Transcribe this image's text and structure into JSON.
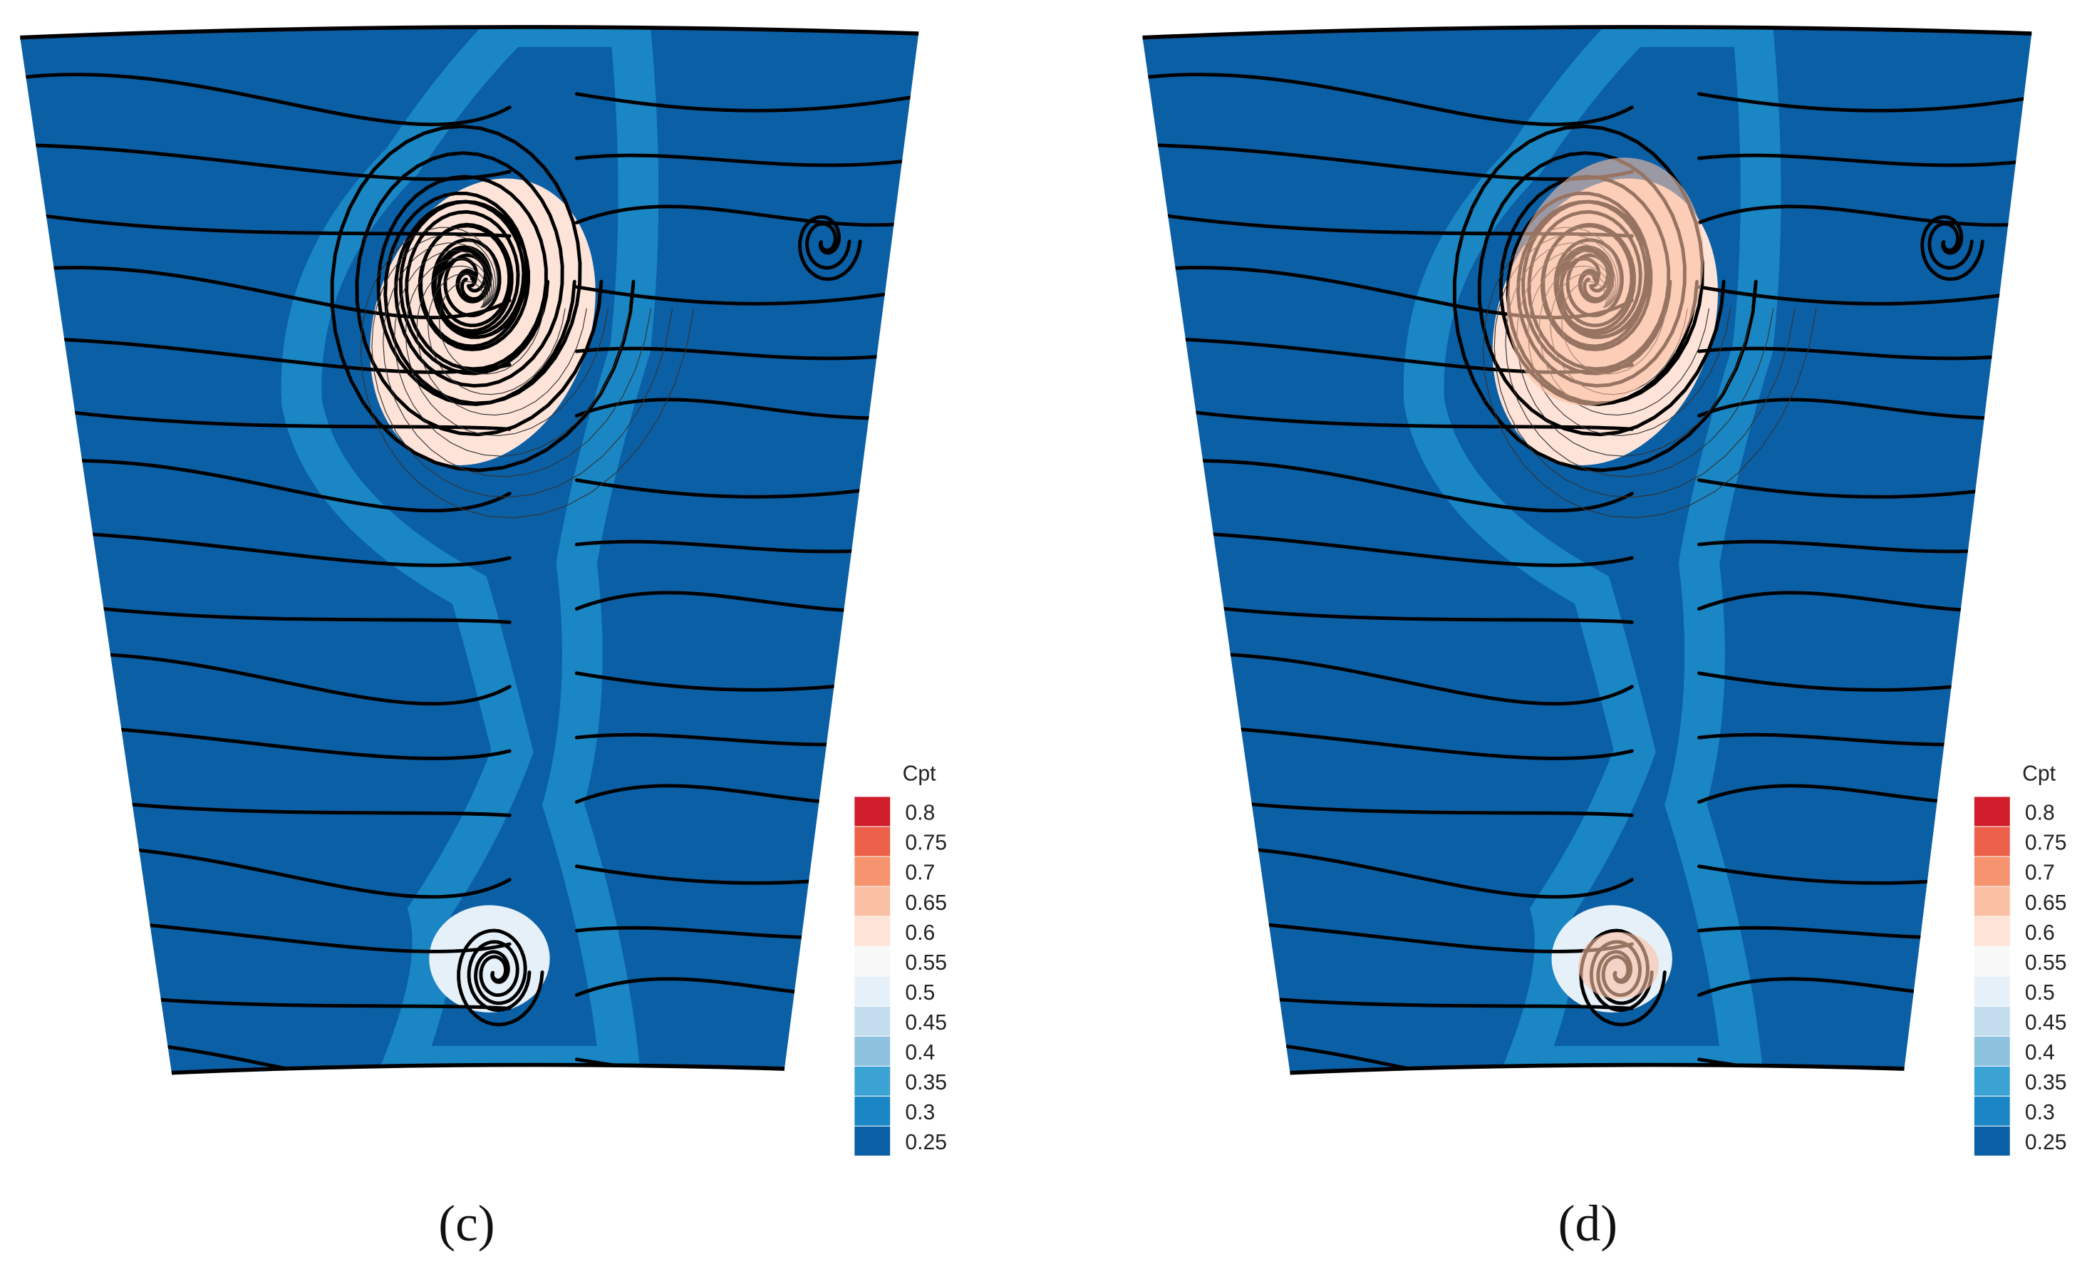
{
  "panels": [
    {
      "label": "(c)",
      "colorbar": {
        "title": "Cpt",
        "levels": [
          0.25,
          0.3,
          0.35,
          0.4,
          0.45,
          0.5,
          0.55,
          0.6,
          0.65,
          0.7,
          0.75,
          0.8
        ],
        "colors": [
          "#0b5fa5",
          "#1a86c4",
          "#3aa3d3",
          "#8dc2de",
          "#c3dcee",
          "#e6f0f8",
          "#f8f8f8",
          "#fde3d8",
          "#fbbfa3",
          "#f5946f",
          "#ec6049",
          "#d01c2b"
        ]
      }
    },
    {
      "label": "(d)",
      "colorbar": {
        "title": "Cpt",
        "levels": [
          0.25,
          0.3,
          0.35,
          0.4,
          0.45,
          0.5,
          0.55,
          0.6,
          0.65,
          0.7,
          0.75,
          0.8
        ],
        "colors": [
          "#0b5fa5",
          "#1a86c4",
          "#3aa3d3",
          "#8dc2de",
          "#c3dcee",
          "#e6f0f8",
          "#f8f8f8",
          "#fde3d8",
          "#fbbfa3",
          "#f5946f",
          "#ec6049",
          "#d01c2b"
        ]
      }
    }
  ]
}
